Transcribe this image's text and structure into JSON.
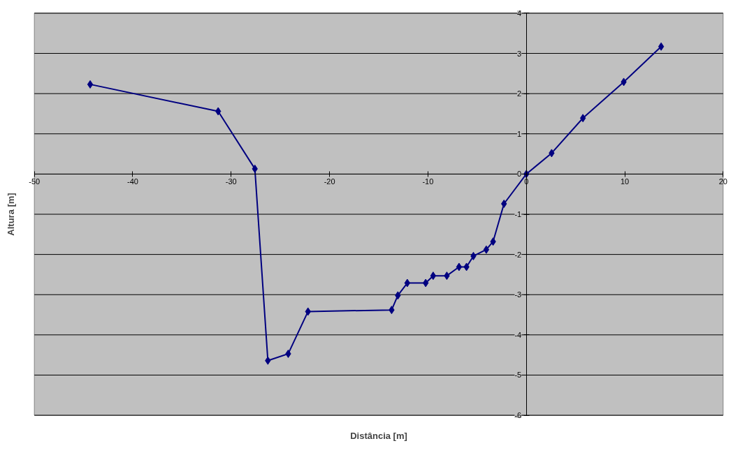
{
  "chart_data": {
    "type": "line",
    "xlabel": "Distância [m]",
    "ylabel": "Altura [m]",
    "series": [
      {
        "color": "#000080",
        "x": [
          -44.33,
          -31.32,
          -27.59,
          -26.27,
          -24.2,
          -22.19,
          -13.69,
          -13.06,
          -12.1,
          -10.23,
          -9.47,
          -8.08,
          -6.84,
          -6.08,
          -5.38,
          -4.07,
          -3.38,
          -2.27,
          0,
          2.57,
          5.75,
          9.9,
          13.7
        ],
        "values": [
          2.23,
          1.56,
          0.13,
          -4.64,
          -4.47,
          -3.42,
          -3.38,
          -3.02,
          -2.71,
          -2.71,
          -2.53,
          -2.53,
          -2.31,
          -2.31,
          -2.04,
          -1.88,
          -1.68,
          -0.74,
          0,
          0.52,
          1.39,
          2.29,
          3.17
        ]
      }
    ],
    "xlim": [
      -50,
      20
    ],
    "xticks": [
      -50,
      -40,
      -30,
      -20,
      -10,
      0,
      10,
      20
    ],
    "ylim": [
      -6,
      4
    ],
    "yticks": [
      -6,
      -5,
      -4,
      -3,
      -2,
      -1,
      0,
      1,
      2,
      3,
      4
    ],
    "grid": "y",
    "marker": "diamond",
    "line_style": "solid"
  }
}
